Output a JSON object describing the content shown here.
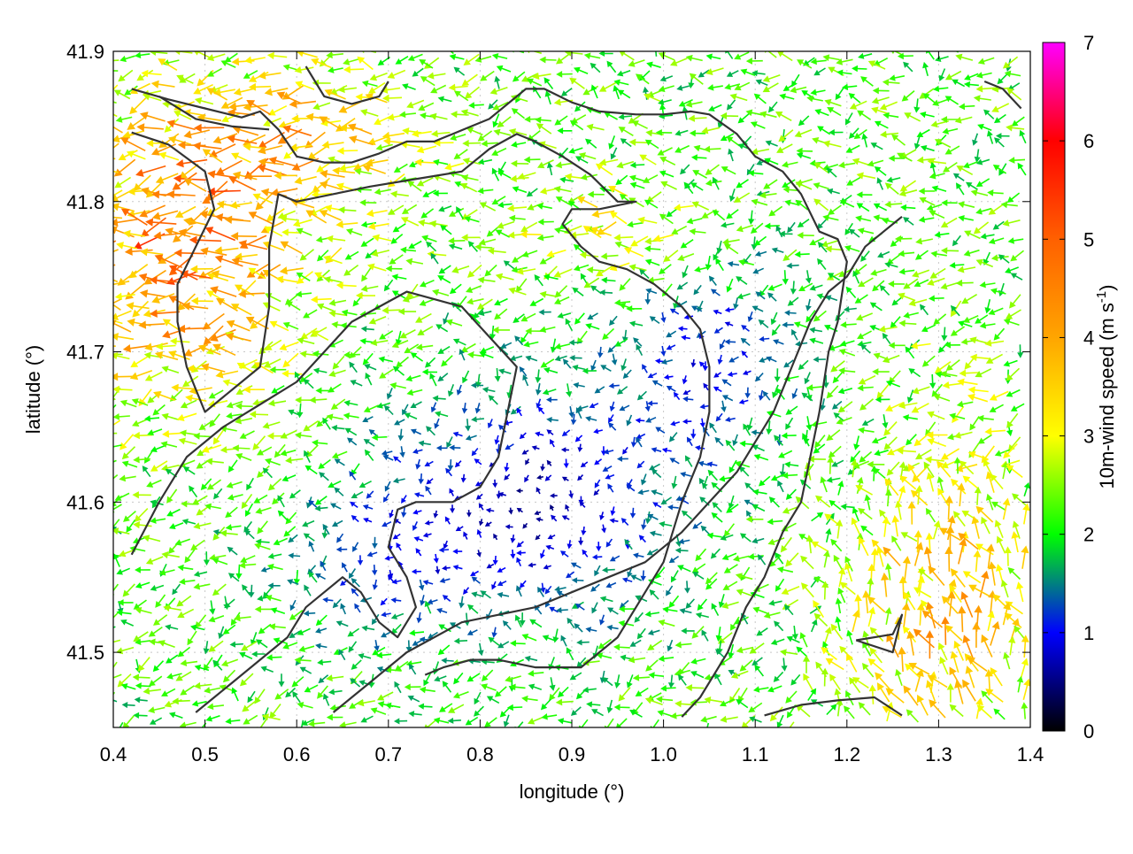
{
  "chart_data": {
    "type": "vector_field",
    "title": "",
    "xlabel": "longitude (°)",
    "ylabel": "latitude (°)",
    "xlim": [
      0.4,
      1.4
    ],
    "ylim": [
      41.45,
      41.9
    ],
    "xticks": [
      0.4,
      0.5,
      0.6,
      0.7,
      0.8,
      0.9,
      1.0,
      1.1,
      1.2,
      1.3,
      1.4
    ],
    "xtick_labels": [
      "0.4",
      "0.5",
      "0.6",
      "0.7",
      "0.8",
      "0.9",
      "1.0",
      "1.1",
      "1.2",
      "1.3",
      "1.4"
    ],
    "yticks": [
      41.5,
      41.6,
      41.7,
      41.8,
      41.9
    ],
    "ytick_labels": [
      "41.5",
      "41.6",
      "41.7",
      "41.8",
      "41.9"
    ],
    "grid": true,
    "colorbar": {
      "label_main": "10m-wind speed (m s",
      "label_sup": "-1",
      "label_close": ")",
      "range": [
        0,
        7
      ],
      "ticks": [
        0,
        1,
        2,
        3,
        4,
        5,
        6,
        7
      ],
      "tick_labels": [
        "0",
        "1",
        "2",
        "3",
        "4",
        "5",
        "6",
        "7"
      ],
      "colors": [
        {
          "value": 0,
          "color": "#000000"
        },
        {
          "value": 1,
          "color": "#0000ff"
        },
        {
          "value": 1.5,
          "color": "#008080"
        },
        {
          "value": 2,
          "color": "#00ff00"
        },
        {
          "value": 3,
          "color": "#ffff00"
        },
        {
          "value": 4,
          "color": "#ffa500"
        },
        {
          "value": 5,
          "color": "#ff6000"
        },
        {
          "value": 6,
          "color": "#ff0000"
        },
        {
          "value": 7,
          "color": "#ff00ff"
        }
      ]
    },
    "contour_color": "#333333",
    "contours": [
      [
        [
          0.42,
          41.875
        ],
        [
          0.46,
          41.868
        ],
        [
          0.5,
          41.862
        ],
        [
          0.54,
          41.856
        ],
        [
          0.56,
          41.86
        ],
        [
          0.58,
          41.848
        ],
        [
          0.6,
          41.83
        ],
        [
          0.63,
          41.826
        ],
        [
          0.66,
          41.826
        ],
        [
          0.69,
          41.832
        ],
        [
          0.72,
          41.84
        ],
        [
          0.75,
          41.84
        ],
        [
          0.79,
          41.85
        ],
        [
          0.81,
          41.855
        ],
        [
          0.83,
          41.865
        ],
        [
          0.85,
          41.875
        ],
        [
          0.87,
          41.875
        ],
        [
          0.9,
          41.866
        ],
        [
          0.93,
          41.86
        ],
        [
          0.97,
          41.858
        ],
        [
          1.0,
          41.858
        ],
        [
          1.03,
          41.86
        ],
        [
          1.05,
          41.858
        ],
        [
          1.08,
          41.845
        ],
        [
          1.1,
          41.83
        ],
        [
          1.13,
          41.82
        ],
        [
          1.15,
          41.805
        ],
        [
          1.17,
          41.78
        ],
        [
          1.19,
          41.775
        ],
        [
          1.2,
          41.76
        ],
        [
          1.19,
          41.72
        ],
        [
          1.18,
          41.7
        ],
        [
          1.17,
          41.66
        ],
        [
          1.16,
          41.63
        ],
        [
          1.15,
          41.6
        ],
        [
          1.13,
          41.58
        ],
        [
          1.11,
          41.55
        ],
        [
          1.09,
          41.53
        ],
        [
          1.07,
          41.5
        ],
        [
          1.04,
          41.47
        ],
        [
          1.02,
          41.457
        ]
      ],
      [
        [
          0.42,
          41.846
        ],
        [
          0.46,
          41.838
        ],
        [
          0.5,
          41.82
        ],
        [
          0.51,
          41.795
        ],
        [
          0.49,
          41.77
        ],
        [
          0.47,
          41.745
        ],
        [
          0.47,
          41.72
        ],
        [
          0.48,
          41.69
        ],
        [
          0.5,
          41.66
        ],
        [
          0.53,
          41.675
        ],
        [
          0.56,
          41.69
        ],
        [
          0.57,
          41.73
        ],
        [
          0.57,
          41.77
        ],
        [
          0.58,
          41.805
        ],
        [
          0.6,
          41.8
        ],
        [
          0.64,
          41.805
        ],
        [
          0.68,
          41.81
        ],
        [
          0.72,
          41.814
        ],
        [
          0.78,
          41.82
        ],
        [
          0.81,
          41.835
        ],
        [
          0.84,
          41.845
        ],
        [
          0.86,
          41.84
        ],
        [
          0.89,
          41.83
        ],
        [
          0.92,
          41.818
        ],
        [
          0.95,
          41.8
        ],
        [
          0.97,
          41.8
        ],
        [
          0.93,
          41.795
        ],
        [
          0.9,
          41.795
        ],
        [
          0.89,
          41.785
        ],
        [
          0.91,
          41.77
        ],
        [
          0.93,
          41.76
        ],
        [
          0.96,
          41.755
        ],
        [
          0.99,
          41.745
        ],
        [
          1.02,
          41.73
        ],
        [
          1.04,
          41.715
        ],
        [
          1.05,
          41.69
        ],
        [
          1.05,
          41.66
        ],
        [
          1.04,
          41.63
        ],
        [
          1.02,
          41.6
        ],
        [
          1.0,
          41.56
        ],
        [
          0.97,
          41.53
        ],
        [
          0.95,
          41.51
        ],
        [
          0.93,
          41.5
        ],
        [
          0.91,
          41.49
        ],
        [
          0.86,
          41.49
        ],
        [
          0.82,
          41.495
        ],
        [
          0.79,
          41.495
        ],
        [
          0.76,
          41.49
        ],
        [
          0.74,
          41.485
        ]
      ],
      [
        [
          0.45,
          41.87
        ],
        [
          0.49,
          41.855
        ],
        [
          0.53,
          41.85
        ],
        [
          0.57,
          41.848
        ]
      ],
      [
        [
          0.42,
          41.565
        ],
        [
          0.45,
          41.6
        ],
        [
          0.48,
          41.63
        ],
        [
          0.52,
          41.65
        ],
        [
          0.56,
          41.665
        ],
        [
          0.6,
          41.68
        ],
        [
          0.63,
          41.7
        ],
        [
          0.66,
          41.72
        ],
        [
          0.69,
          41.73
        ],
        [
          0.72,
          41.74
        ],
        [
          0.75,
          41.735
        ],
        [
          0.78,
          41.73
        ],
        [
          0.81,
          41.71
        ],
        [
          0.84,
          41.69
        ],
        [
          0.83,
          41.66
        ],
        [
          0.82,
          41.63
        ],
        [
          0.8,
          41.61
        ],
        [
          0.77,
          41.6
        ],
        [
          0.73,
          41.6
        ],
        [
          0.71,
          41.595
        ],
        [
          0.7,
          41.57
        ],
        [
          0.72,
          41.55
        ],
        [
          0.73,
          41.53
        ],
        [
          0.71,
          41.51
        ],
        [
          0.69,
          41.52
        ],
        [
          0.67,
          41.54
        ],
        [
          0.65,
          41.55
        ],
        [
          0.63,
          41.54
        ],
        [
          0.61,
          41.53
        ],
        [
          0.59,
          41.51
        ],
        [
          0.57,
          41.5
        ],
        [
          0.55,
          41.49
        ],
        [
          0.53,
          41.48
        ],
        [
          0.51,
          41.47
        ],
        [
          0.49,
          41.46
        ]
      ],
      [
        [
          0.64,
          41.46
        ],
        [
          0.66,
          41.47
        ],
        [
          0.68,
          41.48
        ],
        [
          0.7,
          41.49
        ],
        [
          0.72,
          41.5
        ],
        [
          0.75,
          41.51
        ],
        [
          0.78,
          41.52
        ],
        [
          0.82,
          41.525
        ],
        [
          0.86,
          41.53
        ],
        [
          0.9,
          41.54
        ],
        [
          0.94,
          41.55
        ],
        [
          0.98,
          41.56
        ],
        [
          1.0,
          41.57
        ],
        [
          1.02,
          41.58
        ],
        [
          1.05,
          41.6
        ],
        [
          1.08,
          41.62
        ],
        [
          1.1,
          41.64
        ],
        [
          1.12,
          41.66
        ],
        [
          1.14,
          41.69
        ],
        [
          1.16,
          41.72
        ],
        [
          1.18,
          41.74
        ],
        [
          1.2,
          41.75
        ],
        [
          1.22,
          41.77
        ],
        [
          1.24,
          41.78
        ],
        [
          1.26,
          41.79
        ]
      ],
      [
        [
          1.11,
          41.458
        ],
        [
          1.15,
          41.465
        ],
        [
          1.19,
          41.468
        ],
        [
          1.23,
          41.47
        ],
        [
          1.26,
          41.458
        ]
      ],
      [
        [
          1.21,
          41.508
        ],
        [
          1.25,
          41.512
        ],
        [
          1.26,
          41.525
        ],
        [
          1.25,
          41.5
        ],
        [
          1.21,
          41.508
        ]
      ],
      [
        [
          1.35,
          41.88
        ],
        [
          1.37,
          41.875
        ],
        [
          1.39,
          41.862
        ]
      ],
      [
        [
          0.61,
          41.89
        ],
        [
          0.63,
          41.87
        ],
        [
          0.66,
          41.865
        ],
        [
          0.69,
          41.87
        ],
        [
          0.7,
          41.88
        ]
      ]
    ]
  }
}
